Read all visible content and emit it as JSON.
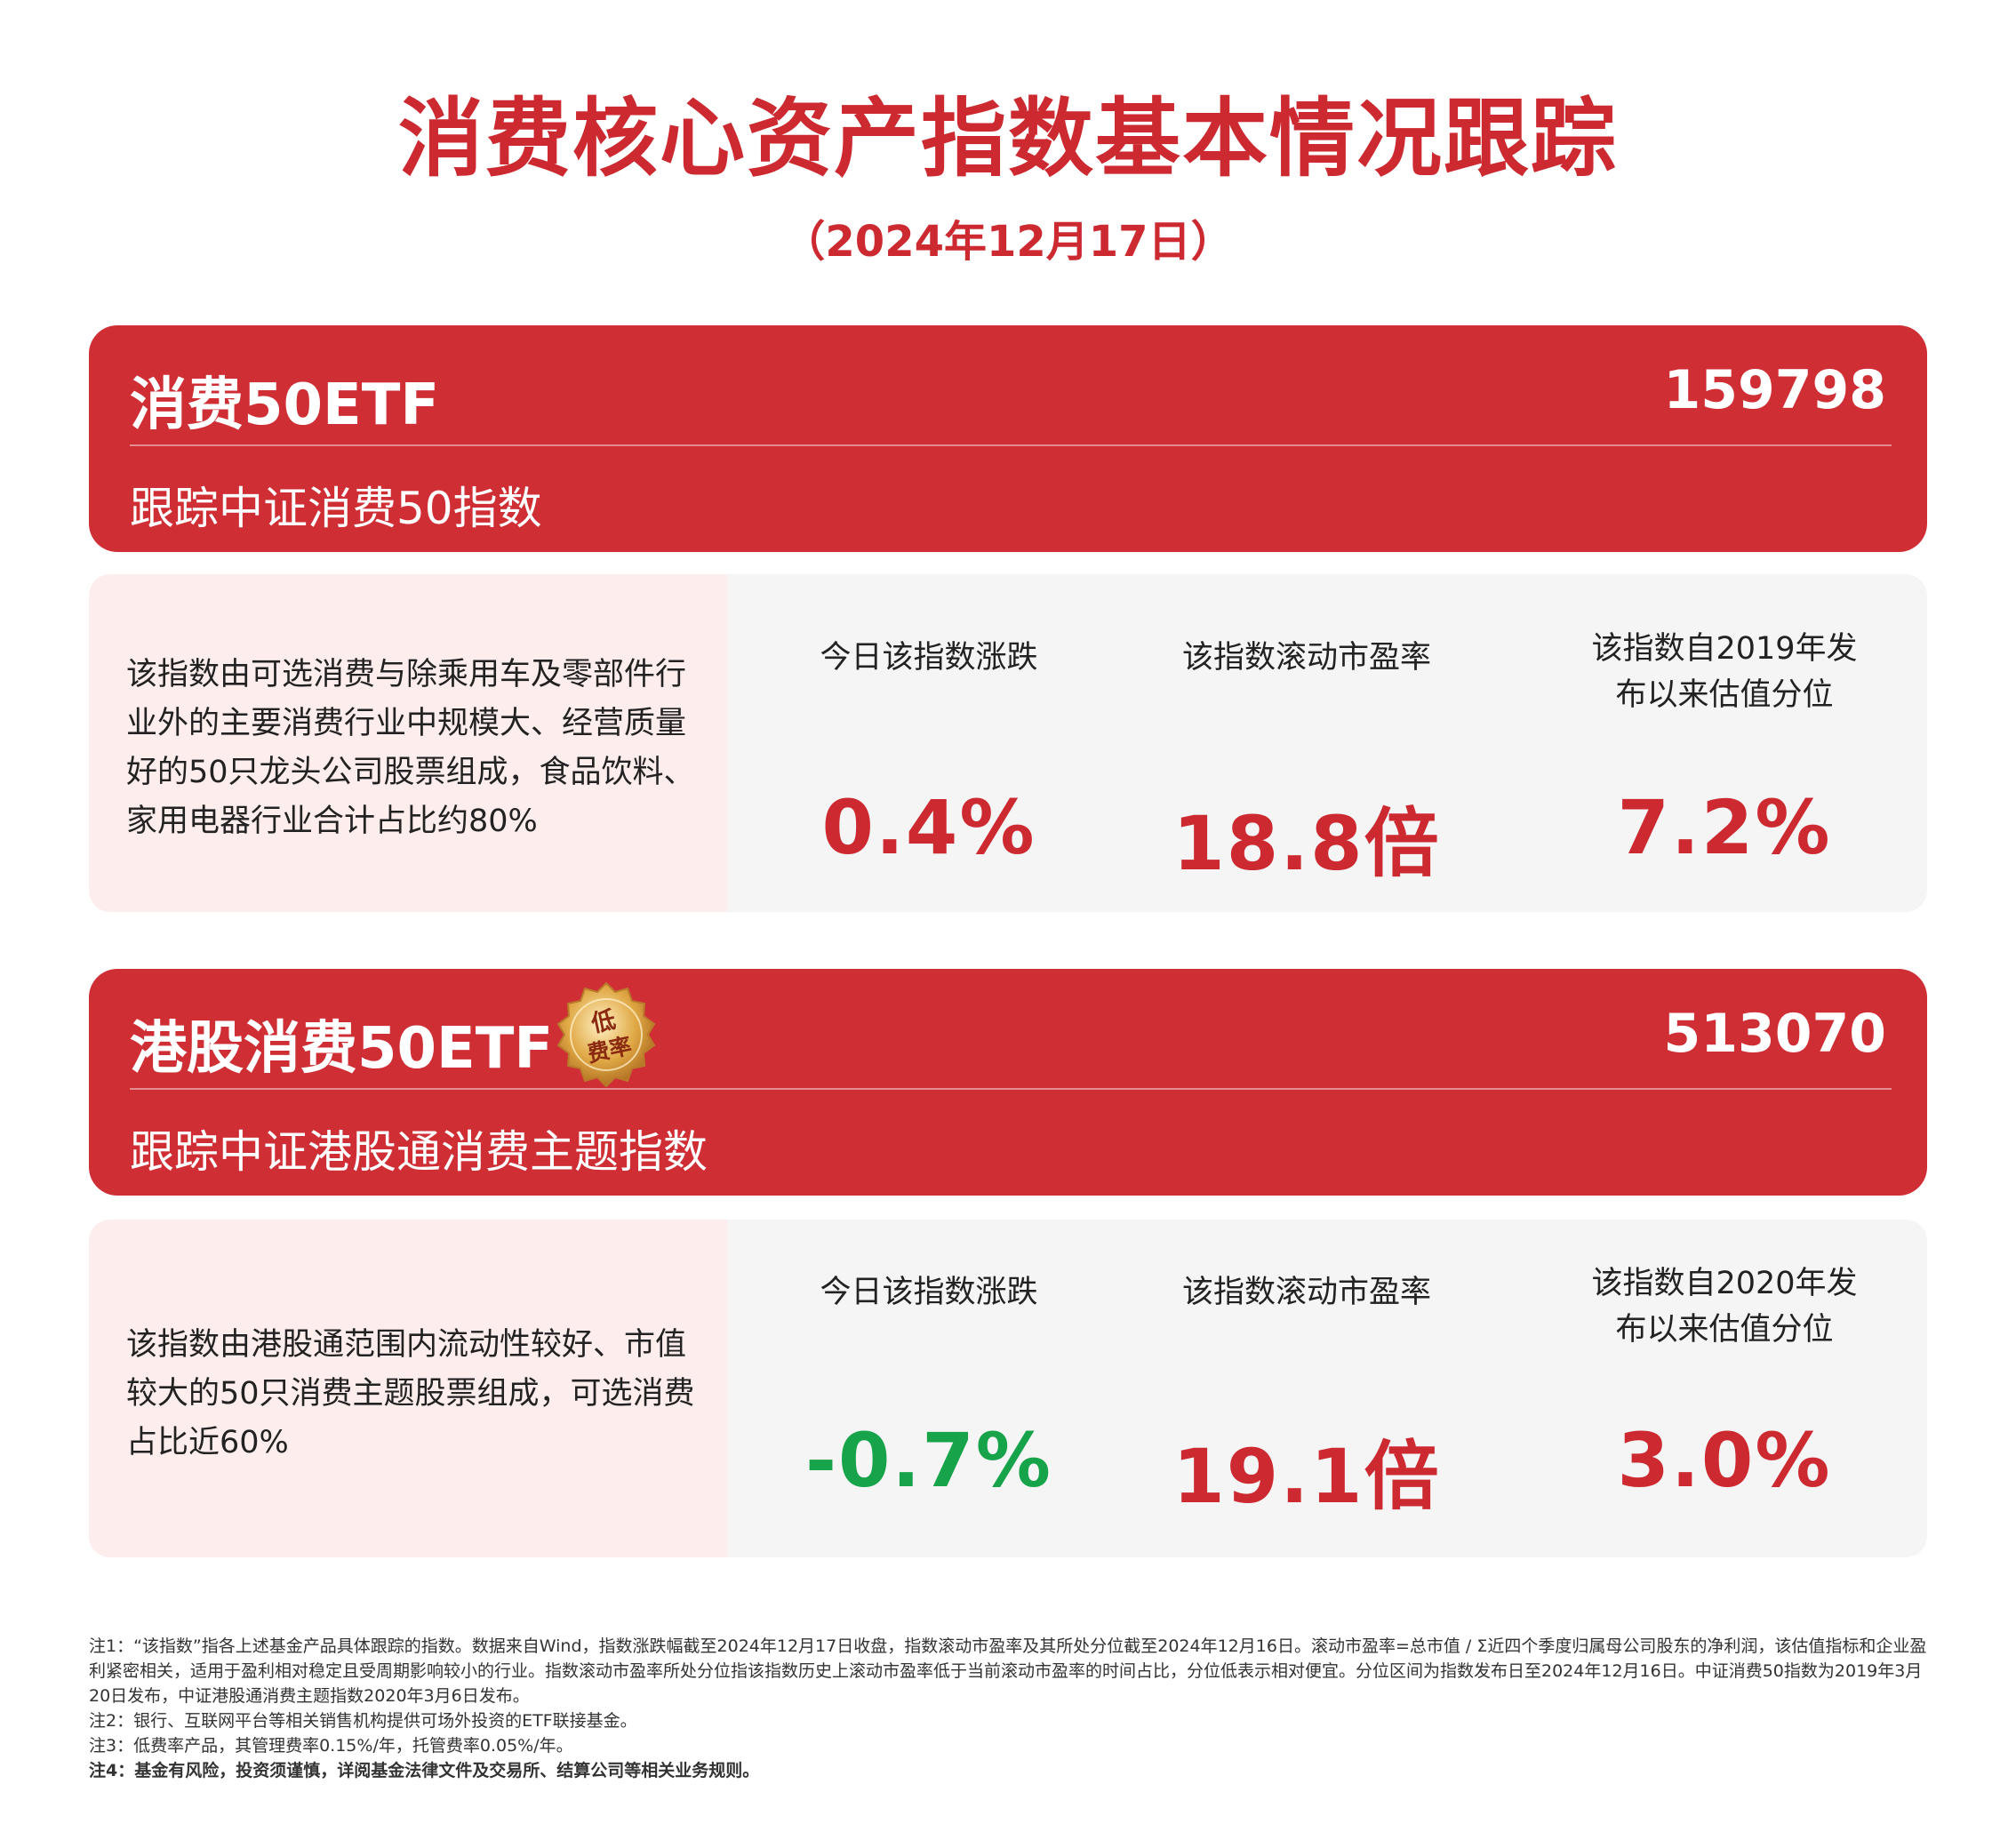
{
  "header": {
    "title": "消费核心资产指数基本情况跟踪",
    "date": "（2024年12月17日）"
  },
  "funds": [
    {
      "name": "消费50ETF",
      "code": "159798",
      "tracking": "跟踪中证消费50指数",
      "description": "该指数由可选消费与除乘用车及零部件行业外的主要消费行业中规模大、经营质量好的50只龙头公司股票组成，食品饮料、家用电器行业合计占比约80%",
      "stats": [
        {
          "label": "今日该指数涨跌",
          "value": "0.4%"
        },
        {
          "label": "该指数滚动市盈率",
          "value": "18.8倍"
        },
        {
          "label": "该指数自2019年发布以来估值分位",
          "value": "7.2%"
        }
      ]
    },
    {
      "name": "港股消费50ETF",
      "code": "513070",
      "badge": "低费率",
      "tracking": "跟踪中证港股通消费主题指数",
      "description": "该指数由港股通范围内流动性较好、市值较大的50只消费主题股票组成，可选消费占比近60%",
      "stats": [
        {
          "label": "今日该指数涨跌",
          "value": "-0.7%"
        },
        {
          "label": "该指数滚动市盈率",
          "value": "19.1倍"
        },
        {
          "label": "该指数自2020年发布以来估值分位",
          "value": "3.0%"
        }
      ]
    }
  ],
  "colors": {
    "brand_red": "#cf2e35",
    "value_red": "#cc2a30",
    "value_green": "#16a34a",
    "desc_bg": "#fdeeed",
    "card_bg": "#f5f5f5"
  },
  "footnotes": [
    "注1：“该指数”指各上述基金产品具体跟踪的指数。数据来自Wind，指数涨跌幅截至2024年12月17日收盘，指数滚动市盈率及其所处分位截至2024年12月16日。滚动市盈率=总市值 / Σ近四个季度归属母公司股东的净利润，该估值指标和企业盈利紧密相关，适用于盈利相对稳定且受周期影响较小的行业。指数滚动市盈率所处分位指该指数历史上滚动市盈率低于当前滚动市盈率的时间占比，分位低表示相对便宜。分位区间为指数发布日至2024年12月16日。中证消费50指数为2019年3月20日发布，中证港股通消费主题指数2020年3月6日发布。",
    "注2：银行、互联网平台等相关销售机构提供可场外投资的ETF联接基金。",
    "注3：低费率产品，其管理费率0.15%/年，托管费率0.05%/年。",
    "注4：基金有风险，投资须谨慎，详阅基金法律文件及交易所、结算公司等相关业务规则。"
  ]
}
